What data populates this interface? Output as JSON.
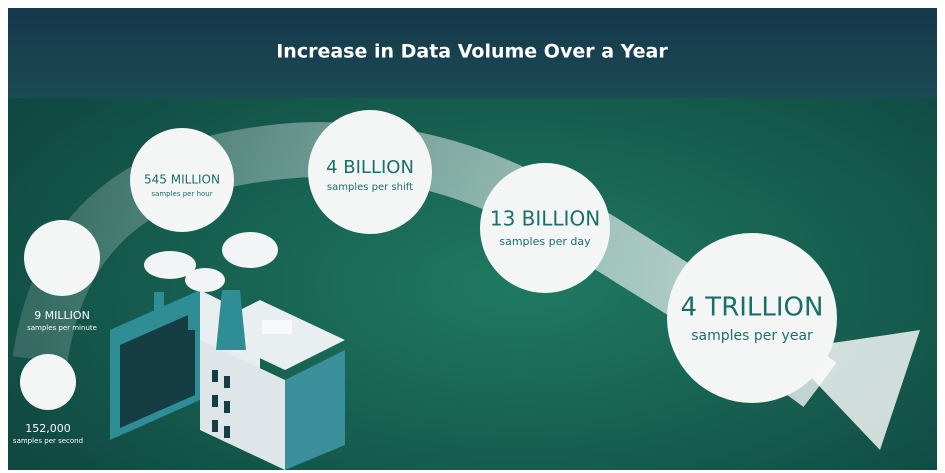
{
  "header": {
    "title": "Increase in Data Volume Over a Year"
  },
  "stages": [
    {
      "value": "152,000",
      "unit": "samples per second"
    },
    {
      "value": "9 MILLION",
      "unit": "samples per minute"
    },
    {
      "value": "545 MILLION",
      "unit": "samples per hour"
    },
    {
      "value": "4 BILLION",
      "unit": "samples per shift"
    },
    {
      "value": "13 BILLION",
      "unit": "samples per day"
    },
    {
      "value": "4 TRILLION",
      "unit": "samples per year"
    }
  ]
}
